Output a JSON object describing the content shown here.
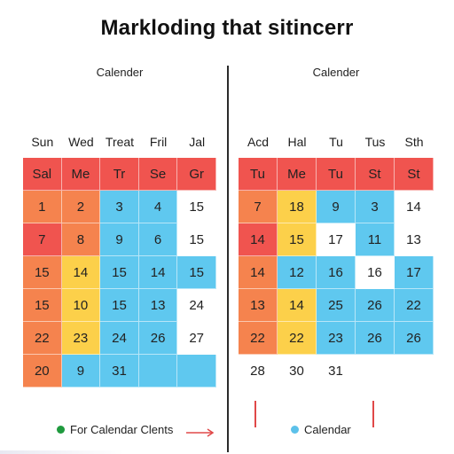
{
  "page": {
    "title": "Markloding that sitincerr"
  },
  "colors": {
    "red": "#f0544f",
    "orange": "#f5834e",
    "yellow": "#fcd04a",
    "blue": "#5fc8ef",
    "white": "#ffffff",
    "green_dot": "#1f9a3e",
    "blue_dot": "#5cc1ea",
    "accent_line": "#e04848"
  },
  "left_calendar": {
    "title": "Calender",
    "day_headers": [
      "Sun",
      "Wed",
      "Treat",
      "Fril",
      "Jal"
    ],
    "rows": [
      [
        {
          "t": "Sal",
          "c": "red"
        },
        {
          "t": "Me",
          "c": "red"
        },
        {
          "t": "Tr",
          "c": "red"
        },
        {
          "t": "Se",
          "c": "red"
        },
        {
          "t": "Gr",
          "c": "red"
        }
      ],
      [
        {
          "t": "1",
          "c": "orange"
        },
        {
          "t": "2",
          "c": "orange"
        },
        {
          "t": "3",
          "c": "blue"
        },
        {
          "t": "4",
          "c": "blue"
        },
        {
          "t": "15",
          "c": "white"
        }
      ],
      [
        {
          "t": "7",
          "c": "red"
        },
        {
          "t": "8",
          "c": "orange"
        },
        {
          "t": "9",
          "c": "blue"
        },
        {
          "t": "6",
          "c": "blue"
        },
        {
          "t": "15",
          "c": "white"
        }
      ],
      [
        {
          "t": "15",
          "c": "orange"
        },
        {
          "t": "14",
          "c": "yellow"
        },
        {
          "t": "15",
          "c": "blue"
        },
        {
          "t": "14",
          "c": "blue"
        },
        {
          "t": "15",
          "c": "blue"
        }
      ],
      [
        {
          "t": "15",
          "c": "orange"
        },
        {
          "t": "10",
          "c": "yellow"
        },
        {
          "t": "15",
          "c": "blue"
        },
        {
          "t": "13",
          "c": "blue"
        },
        {
          "t": "24",
          "c": "white"
        }
      ],
      [
        {
          "t": "22",
          "c": "orange"
        },
        {
          "t": "23",
          "c": "yellow"
        },
        {
          "t": "24",
          "c": "blue"
        },
        {
          "t": "26",
          "c": "blue"
        },
        {
          "t": "27",
          "c": "white"
        }
      ],
      [
        {
          "t": "20",
          "c": "orange"
        },
        {
          "t": "9",
          "c": "blue"
        },
        {
          "t": "31",
          "c": "blue"
        },
        {
          "t": "",
          "c": "blue"
        },
        {
          "t": "",
          "c": "blue"
        }
      ]
    ],
    "legend_label": "For Calendar Clents"
  },
  "right_calendar": {
    "title": "Calender",
    "day_headers": [
      "Acd",
      "Hal",
      "Tu",
      "Tus",
      "Sth"
    ],
    "rows": [
      [
        {
          "t": "Tu",
          "c": "red"
        },
        {
          "t": "Me",
          "c": "red"
        },
        {
          "t": "Tu",
          "c": "red"
        },
        {
          "t": "St",
          "c": "red"
        },
        {
          "t": "St",
          "c": "red"
        }
      ],
      [
        {
          "t": "7",
          "c": "orange"
        },
        {
          "t": "18",
          "c": "yellow"
        },
        {
          "t": "9",
          "c": "blue"
        },
        {
          "t": "3",
          "c": "blue"
        },
        {
          "t": "14",
          "c": "white"
        }
      ],
      [
        {
          "t": "14",
          "c": "red"
        },
        {
          "t": "15",
          "c": "yellow"
        },
        {
          "t": "17",
          "c": "white"
        },
        {
          "t": "11",
          "c": "blue"
        },
        {
          "t": "13",
          "c": "white"
        }
      ],
      [
        {
          "t": "14",
          "c": "orange"
        },
        {
          "t": "12",
          "c": "blue"
        },
        {
          "t": "16",
          "c": "blue"
        },
        {
          "t": "16",
          "c": "white"
        },
        {
          "t": "17",
          "c": "blue"
        }
      ],
      [
        {
          "t": "13",
          "c": "orange"
        },
        {
          "t": "14",
          "c": "yellow"
        },
        {
          "t": "25",
          "c": "blue"
        },
        {
          "t": "26",
          "c": "blue"
        },
        {
          "t": "22",
          "c": "blue"
        }
      ],
      [
        {
          "t": "22",
          "c": "orange"
        },
        {
          "t": "22",
          "c": "yellow"
        },
        {
          "t": "23",
          "c": "blue"
        },
        {
          "t": "26",
          "c": "blue"
        },
        {
          "t": "26",
          "c": "blue"
        }
      ],
      [
        {
          "t": "28",
          "c": "white"
        },
        {
          "t": "30",
          "c": "white"
        },
        {
          "t": "31",
          "c": "white"
        },
        {
          "t": "",
          "c": "white"
        },
        {
          "t": "",
          "c": "white"
        }
      ]
    ],
    "legend_label": "Calendar"
  },
  "icons": {
    "left_legend_dot": "green-dot-icon",
    "right_legend_dot": "blue-dot-icon",
    "arrow": "arrow-right-icon"
  }
}
